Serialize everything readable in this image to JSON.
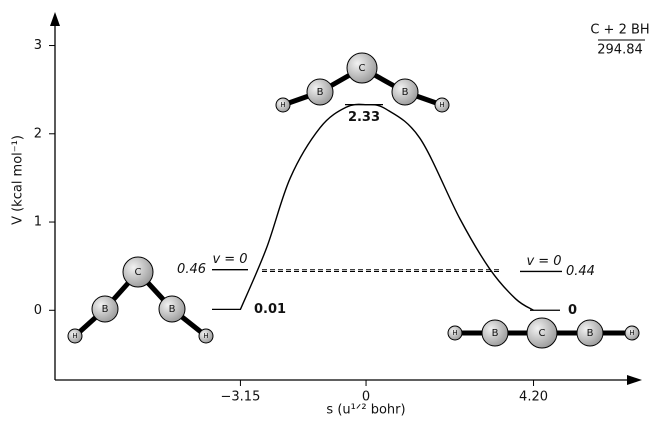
{
  "chart_data": {
    "type": "line",
    "x_label": "s (u¹ᐟ² bohr)",
    "y_label": "V (kcal mol⁻¹)",
    "xlim": [
      -7.8,
      6.87
    ],
    "ylim": [
      -0.79,
      3.38
    ],
    "xticks": [
      {
        "value": -3.15,
        "label": "−3.15"
      },
      0,
      {
        "value": 4.2,
        "label": "4.20"
      }
    ],
    "yticks": [
      0,
      1,
      2,
      3
    ],
    "x": [
      -3.15,
      -2.5,
      -1.9,
      -1.15,
      -0.5,
      0,
      0.5,
      1.35,
      2.35,
      3.1,
      3.75,
      4.2
    ],
    "values": [
      0.01,
      0.7,
      1.5,
      2.07,
      2.3,
      2.33,
      2.28,
      1.95,
      1.04,
      0.47,
      0.13,
      0
    ],
    "color": "#000000",
    "levels": [
      {
        "value": 0.01
      },
      {
        "value": 2.33
      },
      {
        "value": 0
      },
      {
        "value": 0.46,
        "state": "v = 0"
      },
      {
        "value": 0.44,
        "state": "v = 0"
      }
    ],
    "reference": {
      "text": "C + 2 BH",
      "value": 294.84
    },
    "molecules": [
      {
        "atoms": [
          "H",
          "B",
          "C",
          "B",
          "H"
        ]
      },
      {
        "atoms": [
          "H",
          "B",
          "C",
          "B",
          "H"
        ]
      },
      {
        "atoms": [
          "H",
          "B",
          "C",
          "B",
          "H"
        ]
      }
    ]
  }
}
